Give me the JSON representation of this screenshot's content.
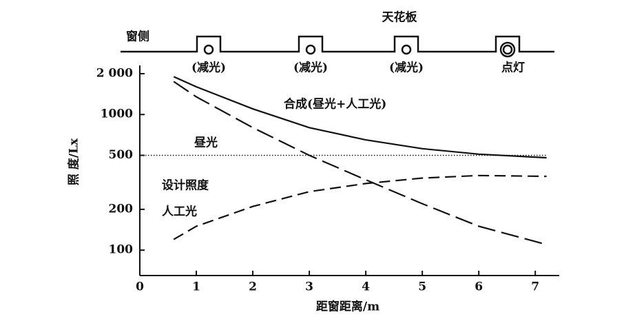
{
  "chart_data": {
    "type": "line",
    "ylabel": "照 度/Lx",
    "xlabel": "距窗距离/m",
    "x": [
      0.6,
      1,
      2,
      3,
      4,
      5,
      6,
      7.2
    ],
    "series": [
      {
        "name": "合成(昼光+人工光)",
        "color": "#111111",
        "dash": "solid",
        "values": [
          1900,
          1600,
          1100,
          800,
          650,
          560,
          510,
          480
        ]
      },
      {
        "name": "昼光",
        "color": "#111111",
        "dash": "long",
        "values": [
          1750,
          1350,
          800,
          500,
          330,
          220,
          150,
          110
        ]
      },
      {
        "name": "人工光",
        "color": "#111111",
        "dash": "short",
        "values": [
          120,
          150,
          210,
          270,
          310,
          340,
          355,
          350
        ]
      }
    ],
    "reference_line": {
      "value": 500,
      "label": "设计照度"
    },
    "xlim": [
      0,
      7.4
    ],
    "xticks": [
      0,
      1,
      2,
      3,
      4,
      5,
      6,
      7
    ],
    "ylim": [
      65,
      2300
    ],
    "log_y": true,
    "yticks": [
      {
        "value": 2000,
        "label": "2 000"
      },
      1000,
      500,
      200,
      100
    ],
    "ceiling": {
      "label": "天花板",
      "window_side": "窗侧",
      "lamps": [
        "(减光)",
        "(减光)",
        "(减光)",
        "点灯"
      ]
    }
  }
}
